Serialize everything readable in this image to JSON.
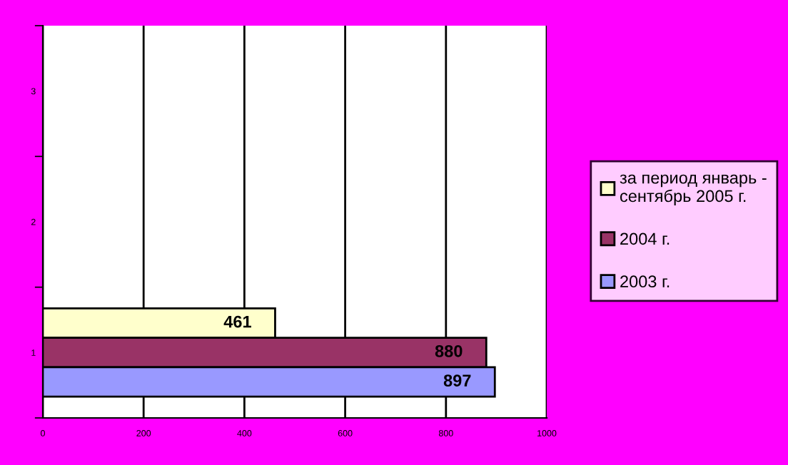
{
  "chart_data": {
    "type": "bar",
    "orientation": "horizontal",
    "categories": [
      "3",
      "2",
      "1"
    ],
    "series": [
      {
        "name": "за период январь -\nсентябрь 2005 г.",
        "color": "#ffffcc",
        "values": [
          null,
          null,
          461
        ]
      },
      {
        "name": "2004 г.",
        "color": "#993366",
        "values": [
          null,
          null,
          880
        ]
      },
      {
        "name": "2003 г.",
        "color": "#9999ff",
        "values": [
          null,
          null,
          897
        ]
      }
    ],
    "xlim": [
      0,
      1000
    ],
    "xticks": [
      0,
      200,
      400,
      600,
      800,
      1000
    ],
    "grid": "x",
    "legend": "right",
    "data_labels": true
  }
}
